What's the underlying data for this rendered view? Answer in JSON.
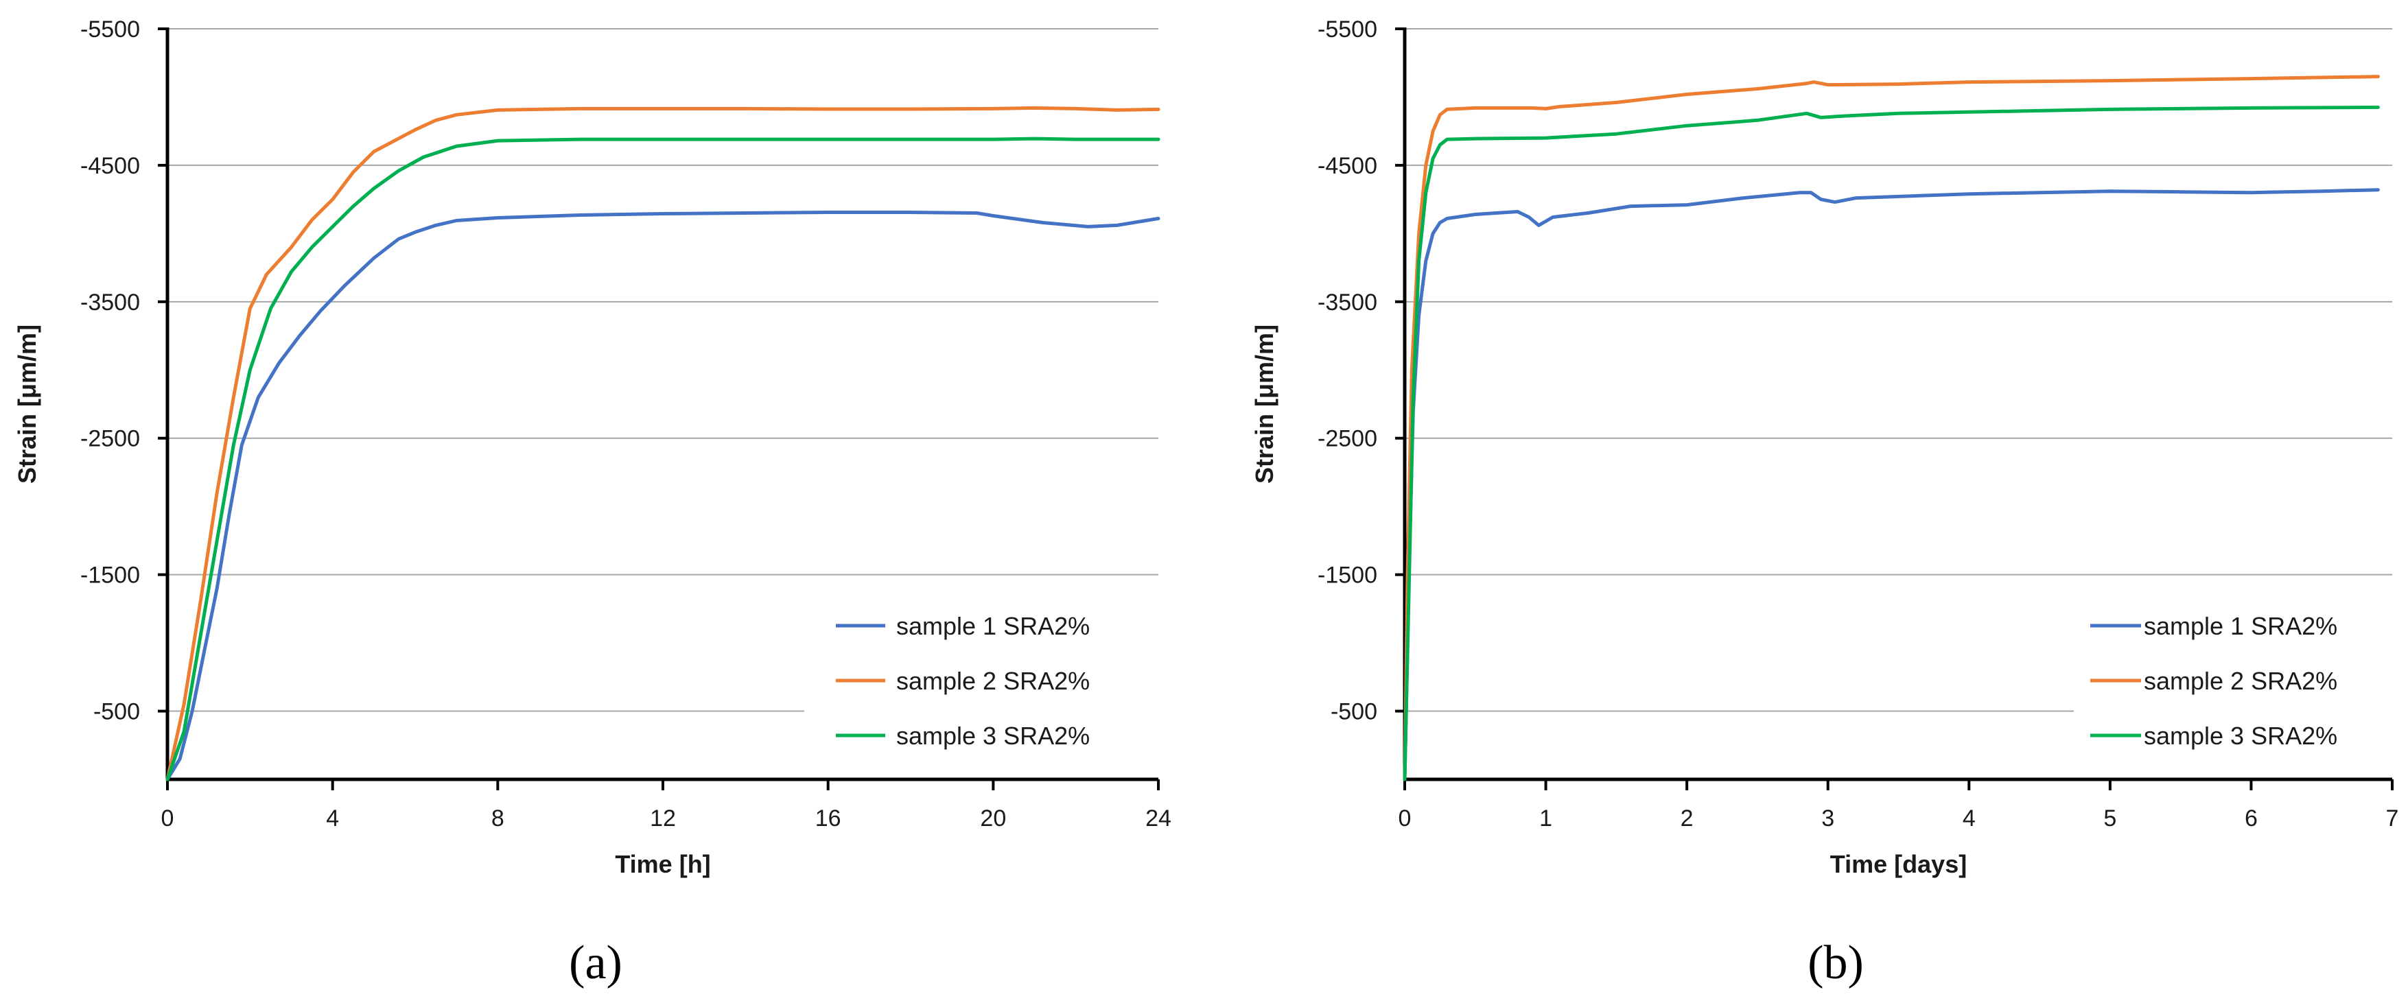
{
  "chart_data": [
    {
      "type": "line",
      "panel_label": "(a)",
      "xlabel": "Time [h]",
      "ylabel": "Strain [μm/m]",
      "xlim": [
        0,
        24
      ],
      "ylim": [
        0,
        -5500
      ],
      "xticks": [
        0,
        4,
        8,
        12,
        16,
        20,
        24
      ],
      "xtick_labels": [
        "0",
        "4",
        "8",
        "12",
        "16",
        "20",
        "24"
      ],
      "yticks": [
        -500,
        -1500,
        -2500,
        -3500,
        -4500,
        -5500
      ],
      "ytick_labels": [
        "-500",
        "-1500",
        "-2500",
        "-3500",
        "-4500",
        "-5500"
      ],
      "grid": "horizontal",
      "legend_position": "bottom-right",
      "series": [
        {
          "name": "sample 1 SRA2%",
          "color": "#4472C4",
          "points": [
            [
              0,
              0
            ],
            [
              0.3,
              -150
            ],
            [
              0.6,
              -500
            ],
            [
              0.9,
              -950
            ],
            [
              1.2,
              -1400
            ],
            [
              1.5,
              -1950
            ],
            [
              1.8,
              -2450
            ],
            [
              2.2,
              -2800
            ],
            [
              2.7,
              -3050
            ],
            [
              3.2,
              -3250
            ],
            [
              3.7,
              -3430
            ],
            [
              4.3,
              -3620
            ],
            [
              5,
              -3820
            ],
            [
              5.6,
              -3960
            ],
            [
              6,
              -4010
            ],
            [
              6.5,
              -4060
            ],
            [
              7,
              -4095
            ],
            [
              8,
              -4115
            ],
            [
              10,
              -4135
            ],
            [
              12,
              -4145
            ],
            [
              14,
              -4150
            ],
            [
              16,
              -4155
            ],
            [
              18,
              -4155
            ],
            [
              19.6,
              -4150
            ],
            [
              20,
              -4130
            ],
            [
              20.6,
              -4105
            ],
            [
              21.2,
              -4080
            ],
            [
              22.3,
              -4050
            ],
            [
              23,
              -4060
            ],
            [
              24,
              -4110
            ]
          ]
        },
        {
          "name": "sample 2 SRA2%",
          "color": "#ED7D31",
          "points": [
            [
              0,
              0
            ],
            [
              0.4,
              -550
            ],
            [
              0.8,
              -1300
            ],
            [
              1.2,
              -2100
            ],
            [
              1.6,
              -2800
            ],
            [
              2,
              -3450
            ],
            [
              2.4,
              -3700
            ],
            [
              3,
              -3900
            ],
            [
              3.5,
              -4100
            ],
            [
              4,
              -4250
            ],
            [
              4.5,
              -4450
            ],
            [
              5,
              -4600
            ],
            [
              5.5,
              -4680
            ],
            [
              6,
              -4760
            ],
            [
              6.5,
              -4830
            ],
            [
              7,
              -4870
            ],
            [
              8,
              -4905
            ],
            [
              10,
              -4915
            ],
            [
              12,
              -4915
            ],
            [
              14,
              -4915
            ],
            [
              16,
              -4912
            ],
            [
              18,
              -4912
            ],
            [
              20,
              -4915
            ],
            [
              21,
              -4920
            ],
            [
              22,
              -4915
            ],
            [
              23,
              -4905
            ],
            [
              24,
              -4910
            ]
          ]
        },
        {
          "name": "sample 3 SRA2%",
          "color": "#00B050",
          "points": [
            [
              0,
              0
            ],
            [
              0.4,
              -350
            ],
            [
              0.8,
              -1050
            ],
            [
              1.2,
              -1750
            ],
            [
              1.6,
              -2450
            ],
            [
              2,
              -3000
            ],
            [
              2.5,
              -3450
            ],
            [
              3,
              -3720
            ],
            [
              3.5,
              -3900
            ],
            [
              4,
              -4050
            ],
            [
              4.5,
              -4200
            ],
            [
              5,
              -4330
            ],
            [
              5.6,
              -4460
            ],
            [
              6.2,
              -4560
            ],
            [
              7,
              -4640
            ],
            [
              8,
              -4680
            ],
            [
              10,
              -4690
            ],
            [
              12,
              -4690
            ],
            [
              14,
              -4690
            ],
            [
              16,
              -4690
            ],
            [
              18,
              -4690
            ],
            [
              20,
              -4690
            ],
            [
              21,
              -4695
            ],
            [
              22,
              -4690
            ],
            [
              24,
              -4690
            ]
          ]
        }
      ]
    },
    {
      "type": "line",
      "panel_label": "(b)",
      "xlabel": "Time [days]",
      "ylabel": "Strain [μm/m]",
      "xlim": [
        0,
        7
      ],
      "ylim": [
        0,
        -5500
      ],
      "xticks": [
        0,
        1,
        2,
        3,
        4,
        5,
        6,
        7
      ],
      "xtick_labels": [
        "0",
        "1",
        "2",
        "3",
        "4",
        "5",
        "6",
        "7"
      ],
      "yticks": [
        -500,
        -1500,
        -2500,
        -3500,
        -4500,
        -5500
      ],
      "ytick_labels": [
        "-500",
        "-1500",
        "-2500",
        "-3500",
        "-4500",
        "-5500"
      ],
      "grid": "horizontal",
      "legend_position": "bottom-right",
      "series": [
        {
          "name": "sample 1 SRA2%",
          "color": "#4472C4",
          "points": [
            [
              0,
              0
            ],
            [
              0.03,
              -1500
            ],
            [
              0.06,
              -2700
            ],
            [
              0.1,
              -3400
            ],
            [
              0.15,
              -3800
            ],
            [
              0.2,
              -4000
            ],
            [
              0.25,
              -4080
            ],
            [
              0.3,
              -4110
            ],
            [
              0.5,
              -4140
            ],
            [
              0.8,
              -4160
            ],
            [
              0.88,
              -4120
            ],
            [
              0.95,
              -4060
            ],
            [
              1,
              -4090
            ],
            [
              1.05,
              -4120
            ],
            [
              1.3,
              -4150
            ],
            [
              1.6,
              -4200
            ],
            [
              2,
              -4210
            ],
            [
              2.4,
              -4260
            ],
            [
              2.8,
              -4300
            ],
            [
              2.88,
              -4300
            ],
            [
              2.95,
              -4250
            ],
            [
              3.05,
              -4230
            ],
            [
              3.2,
              -4260
            ],
            [
              4,
              -4290
            ],
            [
              5,
              -4310
            ],
            [
              5.5,
              -4305
            ],
            [
              6,
              -4300
            ],
            [
              6.5,
              -4310
            ],
            [
              6.9,
              -4320
            ]
          ]
        },
        {
          "name": "sample 2 SRA2%",
          "color": "#ED7D31",
          "points": [
            [
              0,
              0
            ],
            [
              0.02,
              -1500
            ],
            [
              0.05,
              -3000
            ],
            [
              0.1,
              -4000
            ],
            [
              0.15,
              -4500
            ],
            [
              0.2,
              -4750
            ],
            [
              0.25,
              -4870
            ],
            [
              0.3,
              -4910
            ],
            [
              0.5,
              -4920
            ],
            [
              0.9,
              -4920
            ],
            [
              1,
              -4915
            ],
            [
              1.1,
              -4930
            ],
            [
              1.5,
              -4960
            ],
            [
              2,
              -5020
            ],
            [
              2.5,
              -5060
            ],
            [
              2.85,
              -5100
            ],
            [
              2.9,
              -5110
            ],
            [
              3,
              -5090
            ],
            [
              3.5,
              -5095
            ],
            [
              4,
              -5110
            ],
            [
              5,
              -5120
            ],
            [
              6,
              -5135
            ],
            [
              6.9,
              -5150
            ]
          ]
        },
        {
          "name": "sample 3 SRA2%",
          "color": "#00B050",
          "points": [
            [
              0,
              0
            ],
            [
              0.03,
              -1400
            ],
            [
              0.06,
              -2800
            ],
            [
              0.1,
              -3800
            ],
            [
              0.15,
              -4300
            ],
            [
              0.2,
              -4550
            ],
            [
              0.25,
              -4650
            ],
            [
              0.3,
              -4690
            ],
            [
              0.5,
              -4695
            ],
            [
              1,
              -4700
            ],
            [
              1.5,
              -4730
            ],
            [
              2,
              -4790
            ],
            [
              2.5,
              -4830
            ],
            [
              2.85,
              -4880
            ],
            [
              2.95,
              -4850
            ],
            [
              3.1,
              -4860
            ],
            [
              3.5,
              -4880
            ],
            [
              4,
              -4890
            ],
            [
              5,
              -4910
            ],
            [
              6,
              -4920
            ],
            [
              6.9,
              -4925
            ]
          ]
        }
      ]
    }
  ]
}
